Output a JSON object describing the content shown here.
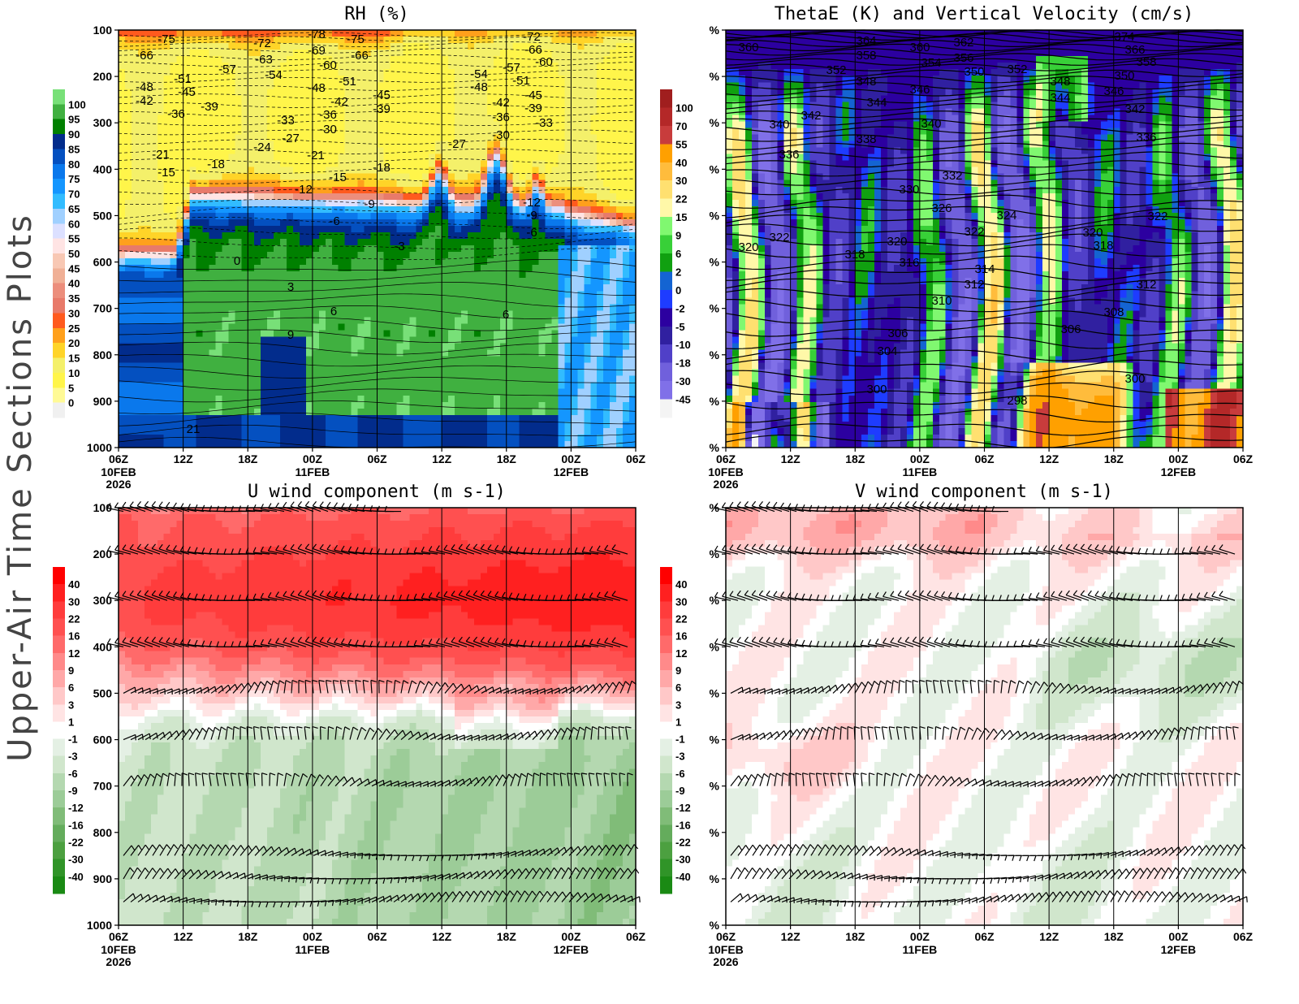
{
  "side_title": "Upper-Air Time Sections Plots",
  "x_ticks": [
    "06Z",
    "12Z",
    "18Z",
    "00Z",
    "06Z",
    "12Z",
    "18Z",
    "00Z",
    "06Z"
  ],
  "x_dates": {
    "d0": "10FEB",
    "y0": "2026",
    "d1": "11FEB",
    "d2": "12FEB"
  },
  "chart_data": [
    {
      "type": "heatmap",
      "title": "RH (%)",
      "y_ticks": [
        "100",
        "200",
        "300",
        "400",
        "500",
        "600",
        "700",
        "800",
        "900",
        "1000"
      ],
      "ylim": [
        100,
        1000
      ],
      "y_reversed": true,
      "colorbar_levels": [
        "0",
        "5",
        "10",
        "15",
        "20",
        "25",
        "30",
        "35",
        "40",
        "45",
        "50",
        "55",
        "60",
        "65",
        "70",
        "75",
        "80",
        "85",
        "90",
        "95",
        "100"
      ],
      "colorbar_colors": [
        "#f0f0f0",
        "#fffa96",
        "#fff54a",
        "#f4f06a",
        "#ffd428",
        "#ffa01c",
        "#ff5a1e",
        "#e87a6a",
        "#ec8e7c",
        "#f0b096",
        "#f8c8b4",
        "#ffe4e4",
        "#dce0ff",
        "#a0d0ff",
        "#32bcff",
        "#1496ff",
        "#0a78ec",
        "#0450c0",
        "#022c8c",
        "#008000",
        "#40b040",
        "#78e078"
      ],
      "contour_labels": [
        "-75",
        "-66",
        "-72",
        "-63",
        "-78",
        "-69",
        "-60",
        "-75",
        "-66",
        "-57",
        "-54",
        "-51",
        "-48",
        "-45",
        "-42",
        "-39",
        "-36",
        "-48",
        "-51",
        "-42",
        "-36",
        "-30",
        "-33",
        "-27",
        "-24",
        "-21",
        "-15",
        "-18",
        "-21",
        "-15",
        "-18",
        "-45",
        "-39",
        "-12",
        "-9",
        "-6",
        "-3",
        "0",
        "3",
        "6",
        "9",
        "21",
        "-72",
        "-66",
        "-60",
        "-57",
        "-54",
        "-48",
        "-51",
        "-45",
        "-42",
        "-39",
        "-36",
        "-33",
        "-30",
        "-27",
        "-12",
        "-9",
        "-6",
        "6"
      ]
    },
    {
      "type": "heatmap",
      "title": "ThetaE (K) and Vertical Velocity (cm/s)",
      "y_ticks": [
        "%",
        "%",
        "%",
        "%",
        "%",
        "%",
        "%",
        "%",
        "%",
        "%"
      ],
      "colorbar_levels": [
        "100",
        "70",
        "55",
        "40",
        "30",
        "22",
        "15",
        "9",
        "6",
        "2",
        "0",
        "-2",
        "-5",
        "-10",
        "-18",
        "-30",
        "-45"
      ],
      "colorbar_colors": [
        "#a01e1e",
        "#b42828",
        "#c83c3c",
        "#ffa000",
        "#ffbc3c",
        "#ffe070",
        "#fff8a8",
        "#80f870",
        "#38d038",
        "#10a010",
        "#1464d2",
        "#1e3cff",
        "#2c00a0",
        "#3020a0",
        "#5040c8",
        "#7060dc",
        "#8070e8",
        "#f4f4f4"
      ],
      "contour_labels": [
        "360",
        "364",
        "358",
        "360",
        "362",
        "354",
        "356",
        "350",
        "352",
        "352",
        "374",
        "366",
        "358",
        "350",
        "348",
        "346",
        "344",
        "348",
        "344",
        "346",
        "342",
        "340",
        "342",
        "338",
        "340",
        "336",
        "336",
        "332",
        "330",
        "326",
        "324",
        "322",
        "322",
        "320",
        "320",
        "322",
        "318",
        "316",
        "314",
        "312",
        "320",
        "318",
        "312",
        "310",
        "308",
        "306",
        "304",
        "306",
        "300",
        "298",
        "300"
      ]
    },
    {
      "type": "heatmap",
      "title": "U wind component (m s-1)",
      "y_ticks": [
        "100",
        "200",
        "300",
        "400",
        "500",
        "600",
        "700",
        "800",
        "900",
        "1000"
      ],
      "ylim": [
        100,
        1000
      ],
      "y_reversed": true,
      "colorbar_levels": [
        "40",
        "30",
        "22",
        "16",
        "12",
        "9",
        "6",
        "3",
        "1",
        "-1",
        "-3",
        "-6",
        "-9",
        "-12",
        "-16",
        "-22",
        "-30",
        "-40"
      ],
      "colorbar_colors": [
        "#ff0000",
        "#ff2020",
        "#ff3c3c",
        "#ff5050",
        "#ff6a6a",
        "#ff8a8a",
        "#ffa8a8",
        "#ffc8c8",
        "#ffe4e4",
        "#ffffff",
        "#e4f0e4",
        "#d0e6cc",
        "#b4d8b0",
        "#9ccc98",
        "#80bc78",
        "#64ac5c",
        "#4ca040",
        "#309428",
        "#1a8a14"
      ]
    },
    {
      "type": "heatmap",
      "title": "V wind component (m s-1)",
      "y_ticks": [
        "%",
        "%",
        "%",
        "%",
        "%",
        "%",
        "%",
        "%",
        "%",
        "%"
      ],
      "colorbar_levels": [
        "40",
        "30",
        "22",
        "16",
        "12",
        "9",
        "6",
        "3",
        "1",
        "-1",
        "-3",
        "-6",
        "-9",
        "-12",
        "-16",
        "-22",
        "-30",
        "-40"
      ],
      "colorbar_colors": [
        "#ff0000",
        "#ff2020",
        "#ff3c3c",
        "#ff5050",
        "#ff6a6a",
        "#ff8a8a",
        "#ffa8a8",
        "#ffc8c8",
        "#ffe4e4",
        "#ffffff",
        "#e4f0e4",
        "#d0e6cc",
        "#b4d8b0",
        "#9ccc98",
        "#80bc78",
        "#64ac5c",
        "#4ca040",
        "#309428",
        "#1a8a14"
      ]
    }
  ]
}
